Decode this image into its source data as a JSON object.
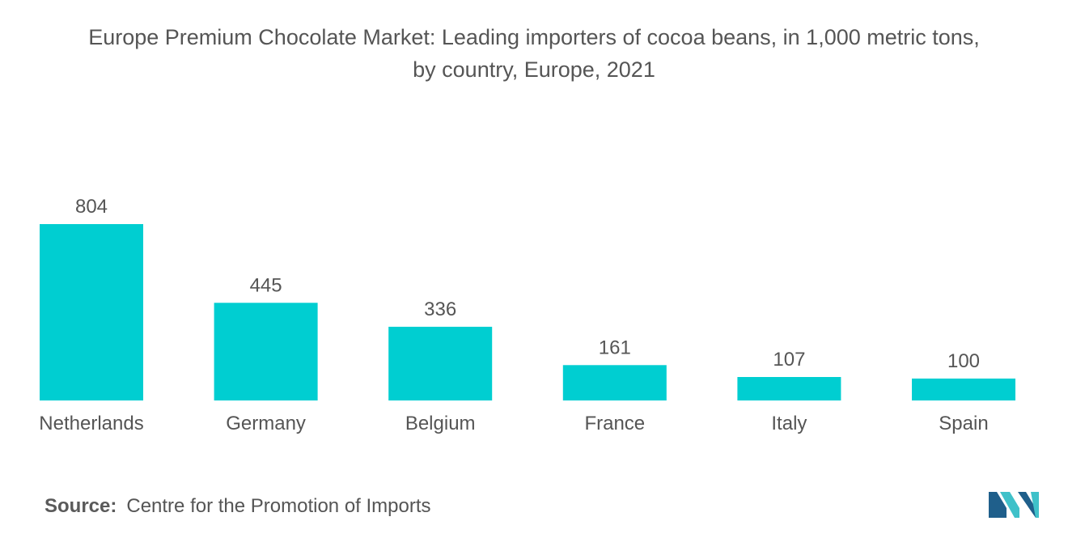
{
  "title_line1": "Europe Premium Chocolate Market: Leading importers of cocoa beans, in 1,000 metric tons,",
  "title_line2": "by country, Europe, 2021",
  "source_label": "Source:",
  "source_text": "Centre for the Promotion of Imports",
  "logo_icon": "mordor-intelligence-logo",
  "colors": {
    "bar": "#00CED1",
    "text": "#555555",
    "logo_dark": "#1F5F8B",
    "logo_light": "#3FC1C9"
  },
  "chart_data": {
    "type": "bar",
    "title": "Europe Premium Chocolate Market: Leading importers of cocoa beans, in 1,000 metric tons, by country, Europe, 2021",
    "categories": [
      "Netherlands",
      "Germany",
      "Belgium",
      "France",
      "Italy",
      "Spain"
    ],
    "values": [
      804,
      445,
      336,
      161,
      107,
      100
    ],
    "xlabel": "",
    "ylabel": "",
    "ylim": [
      0,
      804
    ],
    "grid": false,
    "legend": "none",
    "data_labels": true
  }
}
